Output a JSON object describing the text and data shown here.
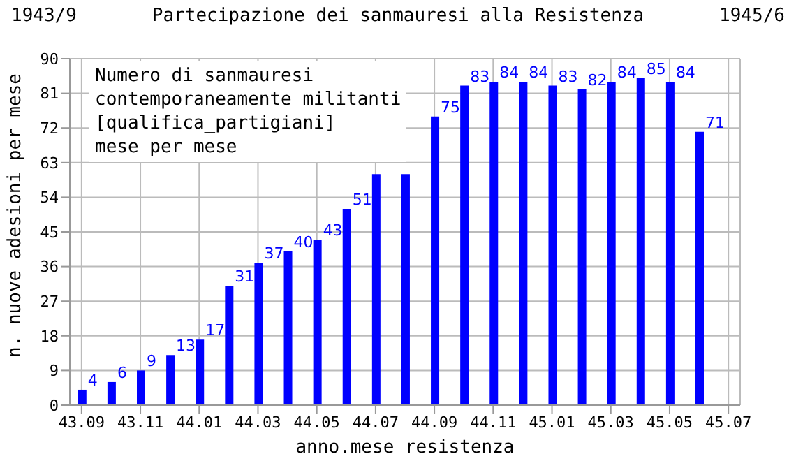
{
  "chart_data": {
    "type": "bar",
    "title": "Partecipazione dei sanmauresi alla Resistenza",
    "xlabel": "anno.mese resistenza",
    "ylabel": "n. nuove adesioni per mese",
    "annotations": [
      "1943/9",
      "1945/6",
      "Numero di sanmauresi\ncontemporaneamente militanti\n[qualifica_partigiani]\nmese per mese"
    ],
    "categories": [
      "43.09",
      null,
      "43.11",
      null,
      "44.01",
      null,
      "44.03",
      null,
      "44.05",
      null,
      "44.07",
      null,
      "44.09",
      null,
      "44.11",
      null,
      "45.01",
      null,
      "45.03",
      null,
      "45.05",
      null,
      "45.07"
    ],
    "values": [
      4,
      6,
      9,
      13,
      17,
      31,
      37,
      40,
      43,
      51,
      60,
      60,
      75,
      83,
      84,
      84,
      83,
      82,
      84,
      85,
      84,
      71,
      0
    ],
    "value_labels": [
      "4",
      "6",
      "9",
      "13",
      "17",
      "31",
      "37",
      "40",
      "43",
      "51",
      null,
      null,
      "75",
      "83",
      "84",
      "84",
      "83",
      "82",
      "84",
      "85",
      "84",
      "71",
      null
    ],
    "color": "#0000ff",
    "ylim": [
      0,
      90
    ],
    "yticks": [
      0,
      9,
      18,
      27,
      36,
      45,
      54,
      63,
      72,
      81,
      90
    ],
    "grid": true
  }
}
